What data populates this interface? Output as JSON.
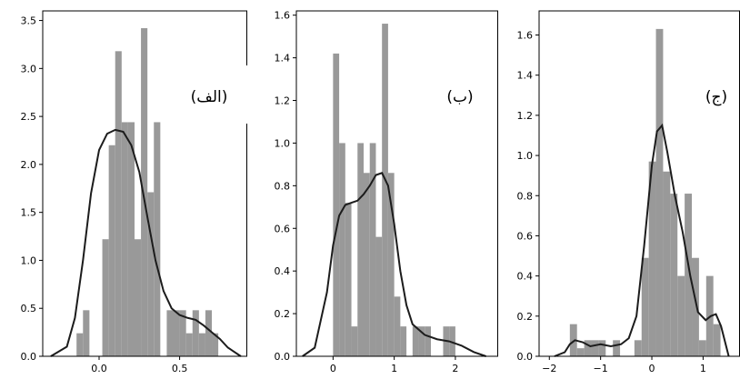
{
  "figure": {
    "colors": {
      "bar": "#999999",
      "kde": "#1c1c1c",
      "axis": "#000000"
    }
  },
  "chart_data": [
    {
      "type": "bar",
      "panel_label": "(الف)",
      "xlim": [
        -0.35,
        0.92
      ],
      "ylim": [
        0,
        3.6
      ],
      "xticks": [
        0.0,
        0.5
      ],
      "xtick_labels": [
        "0.0",
        "0.5"
      ],
      "yticks": [
        0,
        0.5,
        1.0,
        1.5,
        2.0,
        2.5,
        3.0,
        3.5
      ],
      "ytick_labels": [
        "0.0",
        "0.5",
        "1.0",
        "1.5",
        "2.0",
        "2.5",
        "3.0",
        "3.5"
      ],
      "bin_edges": [
        -0.14,
        -0.1,
        -0.06,
        -0.02,
        0.02,
        0.06,
        0.1,
        0.14,
        0.18,
        0.22,
        0.26,
        0.3,
        0.34,
        0.38,
        0.42,
        0.46,
        0.5,
        0.54,
        0.58,
        0.62,
        0.66,
        0.7,
        0.74
      ],
      "values": [
        0.24,
        0.48,
        0,
        0,
        1.22,
        2.2,
        3.18,
        2.44,
        2.44,
        1.22,
        3.42,
        1.71,
        2.44,
        0,
        0.48,
        0.48,
        0.48,
        0.24,
        0.48,
        0.24,
        0.48,
        0.24
      ],
      "kde_x": [
        -0.3,
        -0.2,
        -0.15,
        -0.1,
        -0.05,
        0.0,
        0.05,
        0.1,
        0.15,
        0.2,
        0.25,
        0.3,
        0.35,
        0.4,
        0.45,
        0.5,
        0.55,
        0.6,
        0.65,
        0.7,
        0.75,
        0.8,
        0.88
      ],
      "kde_y": [
        0.0,
        0.1,
        0.4,
        1.0,
        1.7,
        2.15,
        2.32,
        2.36,
        2.34,
        2.2,
        1.92,
        1.45,
        1.0,
        0.68,
        0.5,
        0.43,
        0.4,
        0.38,
        0.32,
        0.25,
        0.18,
        0.09,
        0.0
      ]
    },
    {
      "type": "bar",
      "panel_label": "(ب)",
      "xlim": [
        -0.6,
        2.7
      ],
      "ylim": [
        0,
        1.62
      ],
      "xticks": [
        0,
        1,
        2
      ],
      "xtick_labels": [
        "0",
        "1",
        "2"
      ],
      "yticks": [
        0,
        0.2,
        0.4,
        0.6,
        0.8,
        1.0,
        1.2,
        1.4,
        1.6
      ],
      "ytick_labels": [
        "0.0",
        "0.2",
        "0.4",
        "0.6",
        "0.8",
        "1.0",
        "1.2",
        "1.4",
        "1.6"
      ],
      "bin_edges": [
        0.0,
        0.1,
        0.2,
        0.3,
        0.4,
        0.5,
        0.6,
        0.7,
        0.8,
        0.9,
        1.0,
        1.1,
        1.2,
        1.3,
        1.4,
        1.5,
        1.6,
        1.7,
        1.8,
        1.9,
        2.0
      ],
      "values": [
        1.42,
        1.0,
        0.72,
        0.14,
        1.0,
        0.86,
        1.0,
        0.56,
        1.56,
        0.86,
        0.28,
        0.14,
        0,
        0.14,
        0.14,
        0.14,
        0,
        0,
        0.14,
        0.14
      ],
      "kde_x": [
        -0.5,
        -0.3,
        -0.1,
        0.0,
        0.1,
        0.2,
        0.3,
        0.4,
        0.5,
        0.6,
        0.7,
        0.8,
        0.9,
        1.0,
        1.1,
        1.2,
        1.3,
        1.5,
        1.7,
        1.9,
        2.1,
        2.3,
        2.5
      ],
      "kde_y": [
        0.0,
        0.04,
        0.3,
        0.52,
        0.66,
        0.71,
        0.72,
        0.73,
        0.76,
        0.8,
        0.85,
        0.86,
        0.8,
        0.62,
        0.4,
        0.24,
        0.15,
        0.1,
        0.08,
        0.07,
        0.05,
        0.02,
        0.0
      ]
    },
    {
      "type": "bar",
      "panel_label": "(ج)",
      "xlim": [
        -2.2,
        1.72
      ],
      "ylim": [
        0,
        1.72
      ],
      "xticks": [
        -2,
        -1,
        0,
        1
      ],
      "xtick_labels": [
        "−2",
        "−1",
        "0",
        "1"
      ],
      "yticks": [
        0,
        0.2,
        0.4,
        0.6,
        0.8,
        1.0,
        1.2,
        1.4,
        1.6
      ],
      "ytick_labels": [
        "0.0",
        "0.2",
        "0.4",
        "0.6",
        "0.8",
        "1.0",
        "1.2",
        "1.4",
        "1.6"
      ],
      "bin_edges": [
        -1.6,
        -1.46,
        -1.32,
        -1.18,
        -1.04,
        -0.9,
        -0.76,
        -0.62,
        -0.48,
        -0.34,
        -0.2,
        -0.06,
        0.08,
        0.22,
        0.36,
        0.5,
        0.64,
        0.78,
        0.92,
        1.06,
        1.2,
        1.34
      ],
      "values": [
        0.16,
        0.04,
        0.08,
        0.08,
        0.08,
        0,
        0.08,
        0,
        0,
        0.08,
        0.49,
        0.97,
        1.63,
        0.92,
        0.81,
        0.4,
        0.81,
        0.49,
        0.08,
        0.4,
        0.16
      ],
      "kde_x": [
        -1.9,
        -1.7,
        -1.6,
        -1.5,
        -1.35,
        -1.2,
        -1.0,
        -0.8,
        -0.6,
        -0.45,
        -0.3,
        -0.15,
        0.0,
        0.1,
        0.2,
        0.3,
        0.45,
        0.6,
        0.75,
        0.9,
        1.05,
        1.15,
        1.25,
        1.35,
        1.5
      ],
      "kde_y": [
        0.0,
        0.02,
        0.06,
        0.08,
        0.07,
        0.05,
        0.06,
        0.05,
        0.06,
        0.09,
        0.2,
        0.55,
        0.95,
        1.12,
        1.15,
        1.02,
        0.8,
        0.62,
        0.4,
        0.22,
        0.18,
        0.2,
        0.21,
        0.15,
        0.0
      ]
    }
  ]
}
